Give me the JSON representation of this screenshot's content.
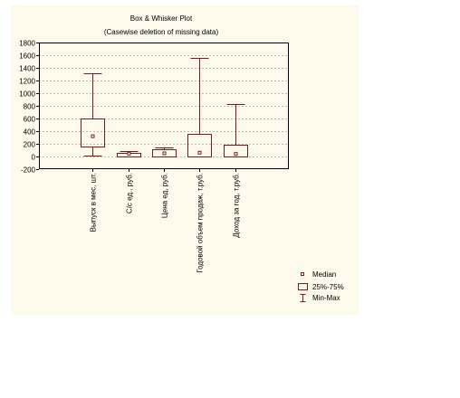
{
  "chart_data": {
    "type": "boxplot",
    "title": "Box & Whisker Plot",
    "subtitle": "(Casewise deletion of missing data)",
    "ylim": [
      -200,
      1800
    ],
    "yticks": [
      1800,
      1600,
      1400,
      1200,
      1000,
      800,
      600,
      400,
      200,
      0,
      -200
    ],
    "grid": true,
    "categories": [
      "Выпуск в мес, шт.",
      "С/с ед., руб.",
      "Цена ед, руб.",
      "Годовой объем продаж, т.руб.",
      "Доход за год, т.руб."
    ],
    "series": [
      {
        "label": "Выпуск в мес, шт.",
        "min": 10,
        "q1": 160,
        "median": 320,
        "q3": 600,
        "max": 1310
      },
      {
        "label": "С/с ед., руб.",
        "min": 0,
        "q1": 5,
        "median": 45,
        "q3": 60,
        "max": 80
      },
      {
        "label": "Цена ед, руб.",
        "min": 0,
        "q1": 5,
        "median": 50,
        "q3": 110,
        "max": 140
      },
      {
        "label": "Годовой объем продаж, т.руб.",
        "min": 0,
        "q1": 5,
        "median": 60,
        "q3": 360,
        "max": 1560
      },
      {
        "label": "Доход за год, т.руб.",
        "min": 0,
        "q1": 5,
        "median": 40,
        "q3": 190,
        "max": 830
      }
    ],
    "legend": {
      "placement": "bottom-right",
      "median": "Median",
      "box": "25%-75%",
      "whisker": "Min-Max"
    },
    "colors": {
      "box": "#7a1a1a",
      "grid": "#b8b8b8",
      "axis": "#000000",
      "panel": "#fdfaec"
    }
  }
}
